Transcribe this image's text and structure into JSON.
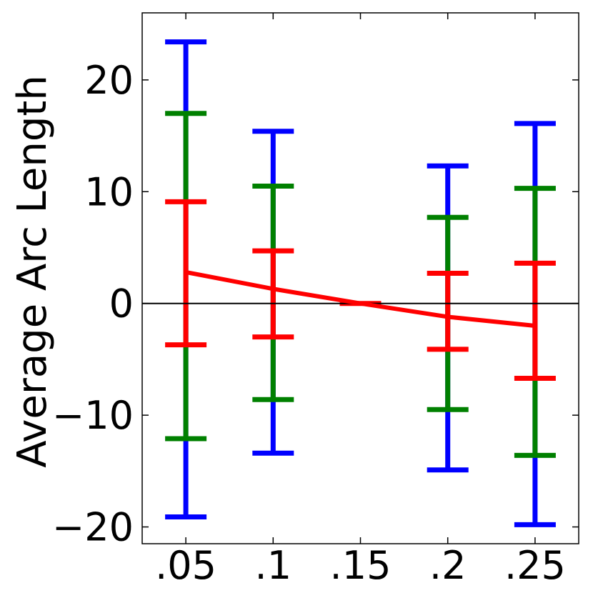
{
  "chart_data": {
    "type": "errorbar",
    "title": "",
    "xlabel": "",
    "ylabel": "Average Arc Length",
    "categories": [
      ".05",
      ".1",
      ".15",
      ".2",
      ".25"
    ],
    "x": [
      0.05,
      0.1,
      0.15,
      0.2,
      0.25
    ],
    "xlim": [
      0.025,
      0.275
    ],
    "ylim": [
      -21.5,
      26
    ],
    "yticks": [
      20,
      10,
      0,
      -10,
      -20
    ],
    "ytick_labels": [
      "20",
      "10",
      "0",
      "−10",
      "−20"
    ],
    "zero_line": true,
    "grid": false,
    "legend": "none",
    "mean_line": {
      "color": "#ff0000",
      "values": [
        2.8,
        1.3,
        0.0,
        -1.2,
        -2.0
      ]
    },
    "error_bands": [
      {
        "color": "#0000ff",
        "upper": [
          23.4,
          15.4,
          0.0,
          12.3,
          16.1
        ],
        "lower": [
          -19.1,
          -13.4,
          0.0,
          -14.9,
          -19.8
        ]
      },
      {
        "color": "#008000",
        "upper": [
          17.0,
          10.5,
          0.0,
          7.7,
          10.3
        ],
        "lower": [
          -12.1,
          -8.6,
          0.0,
          -9.5,
          -13.6
        ]
      },
      {
        "color": "#ff0000",
        "upper": [
          9.1,
          4.7,
          0.0,
          2.7,
          3.6
        ],
        "lower": [
          -3.7,
          -3.0,
          0.0,
          -4.1,
          -6.7
        ]
      }
    ]
  }
}
